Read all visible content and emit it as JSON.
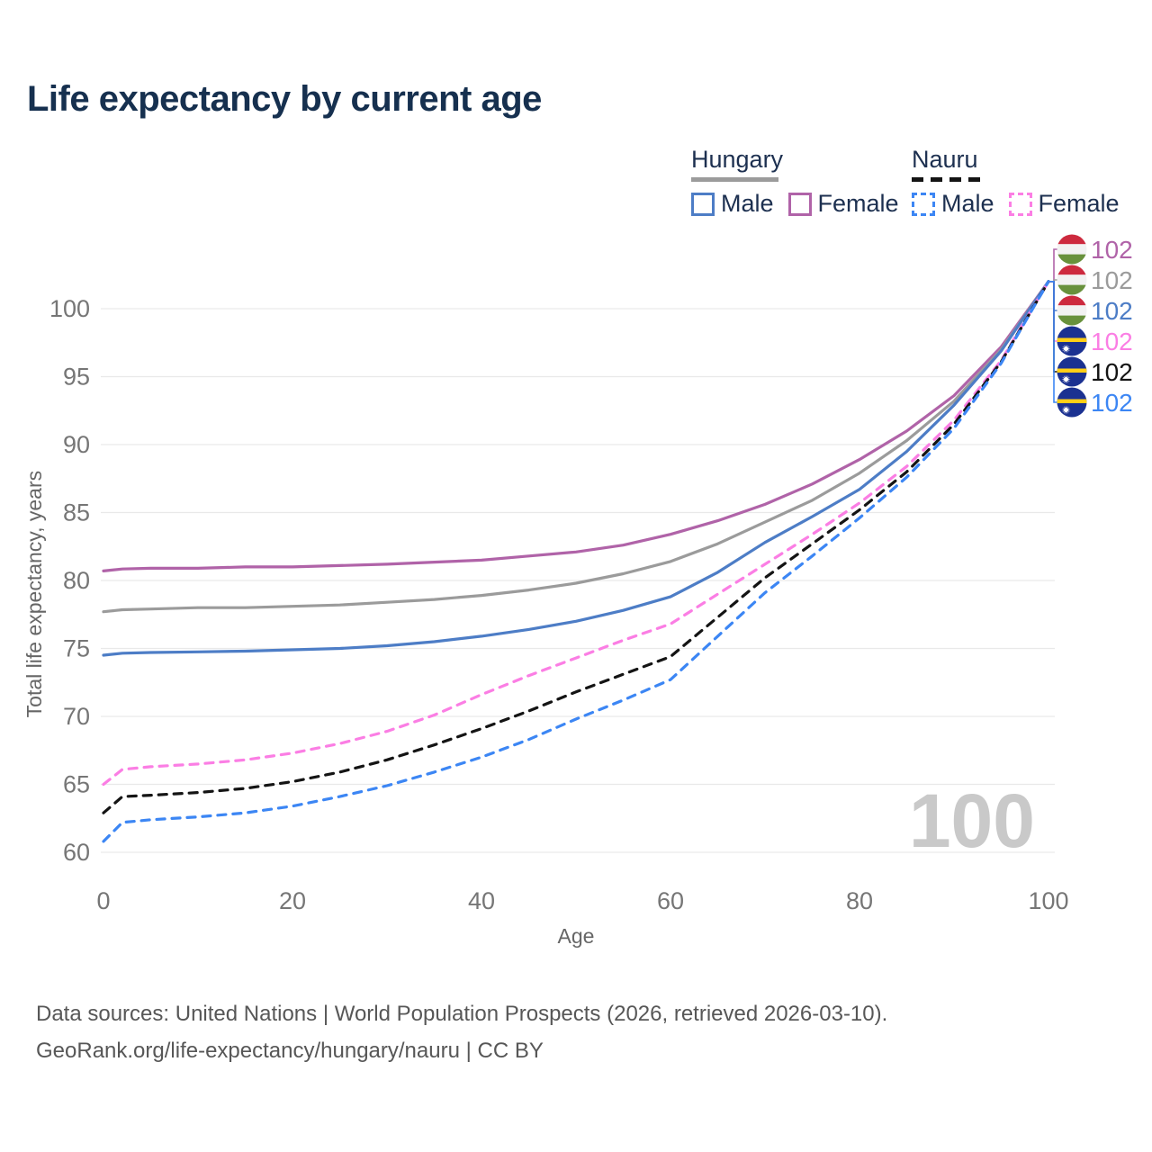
{
  "title": "Life expectancy by current age",
  "watermark": "100",
  "legend": {
    "groups": [
      {
        "name": "Hungary",
        "line_style": "solid",
        "underline_color": "#9b9b9b",
        "underline_width": 97,
        "items": [
          {
            "label": "Male",
            "color": "#4d7dc6",
            "dashed": false
          },
          {
            "label": "Female",
            "color": "#b063a8",
            "dashed": false
          }
        ]
      },
      {
        "name": "Nauru",
        "line_style": "dashed",
        "underline_color": "#141414",
        "underline_width": 80,
        "items": [
          {
            "label": "Male",
            "color": "#3c86f4",
            "dashed": true
          },
          {
            "label": "Female",
            "color": "#fb7ee4",
            "dashed": true
          }
        ]
      }
    ]
  },
  "footer": {
    "line1": "Data sources: United Nations | World Population Prospects (2026, retrieved 2026-03-10).",
    "line2": "GeoRank.org/life-expectancy/hungary/nauru | CC BY"
  },
  "chart_data": {
    "type": "line",
    "title": "Life expectancy by current age",
    "xlabel": "Age",
    "ylabel": "Total life expectancy, years",
    "x_ticks": [
      0,
      20,
      40,
      60,
      80,
      100
    ],
    "y_ticks": [
      60,
      65,
      70,
      75,
      80,
      85,
      90,
      95,
      100
    ],
    "xlim": [
      0,
      100
    ],
    "ylim": [
      59,
      103
    ],
    "grid": "horizontal-only",
    "legend_position": "top-right",
    "ages": [
      0,
      2,
      5,
      10,
      15,
      20,
      25,
      30,
      35,
      40,
      45,
      50,
      55,
      60,
      65,
      70,
      75,
      80,
      85,
      90,
      95,
      100
    ],
    "series": [
      {
        "name": "Hungary Female",
        "country": "Hungary",
        "sex": "Female",
        "color": "#b063a8",
        "dashed": false,
        "flag": "hungary",
        "end_label": "102",
        "values": [
          80.7,
          80.85,
          80.9,
          80.9,
          81.0,
          81.0,
          81.1,
          81.2,
          81.35,
          81.5,
          81.8,
          82.1,
          82.6,
          83.4,
          84.4,
          85.6,
          87.1,
          88.9,
          91.0,
          93.6,
          97.2,
          102
        ]
      },
      {
        "name": "Hungary Both sexes",
        "country": "Hungary",
        "sex": "Both",
        "color": "#9b9b9b",
        "dashed": false,
        "flag": "hungary",
        "end_label": "102",
        "values": [
          77.7,
          77.85,
          77.9,
          78.0,
          78.0,
          78.1,
          78.2,
          78.4,
          78.6,
          78.9,
          79.3,
          79.8,
          80.5,
          81.4,
          82.7,
          84.3,
          85.9,
          87.9,
          90.3,
          93.2,
          97.0,
          102
        ]
      },
      {
        "name": "Hungary Male",
        "country": "Hungary",
        "sex": "Male",
        "color": "#4d7dc6",
        "dashed": false,
        "flag": "hungary",
        "end_label": "102",
        "values": [
          74.5,
          74.65,
          74.7,
          74.75,
          74.8,
          74.9,
          75.0,
          75.2,
          75.5,
          75.9,
          76.4,
          77.0,
          77.8,
          78.8,
          80.6,
          82.8,
          84.7,
          86.7,
          89.5,
          92.9,
          96.9,
          102
        ]
      },
      {
        "name": "Nauru Female",
        "country": "Nauru",
        "sex": "Female",
        "color": "#fb7ee4",
        "dashed": true,
        "flag": "nauru",
        "end_label": "102",
        "values": [
          65.0,
          66.1,
          66.3,
          66.5,
          66.8,
          67.3,
          68.0,
          68.9,
          70.1,
          71.6,
          73.0,
          74.3,
          75.6,
          76.8,
          79.0,
          81.2,
          83.4,
          85.7,
          88.4,
          91.8,
          96.2,
          102
        ]
      },
      {
        "name": "Nauru Both sexes",
        "country": "Nauru",
        "sex": "Both",
        "color": "#141414",
        "dashed": true,
        "flag": "nauru",
        "end_label": "102",
        "values": [
          62.9,
          64.1,
          64.2,
          64.4,
          64.7,
          65.2,
          65.9,
          66.8,
          67.9,
          69.1,
          70.4,
          71.8,
          73.1,
          74.4,
          77.3,
          80.2,
          82.7,
          85.2,
          88.0,
          91.5,
          96.1,
          102
        ]
      },
      {
        "name": "Nauru Male",
        "country": "Nauru",
        "sex": "Male",
        "color": "#3c86f4",
        "dashed": true,
        "flag": "nauru",
        "end_label": "102",
        "values": [
          60.8,
          62.2,
          62.4,
          62.6,
          62.9,
          63.4,
          64.1,
          64.9,
          65.9,
          67.0,
          68.3,
          69.8,
          71.2,
          72.7,
          75.9,
          79.1,
          81.8,
          84.6,
          87.6,
          91.2,
          96.0,
          102
        ]
      }
    ],
    "flag_colors": {
      "hungary_red": "#cd2a3e",
      "hungary_white": "#f2f2f2",
      "hungary_green": "#68913c",
      "nauru_blue": "#1b3191",
      "nauru_yellow": "#ffcf16",
      "nauru_star": "#ffffff"
    },
    "watermark_color": "#c9c9c9",
    "grid_color": "#e9e9e9",
    "tick_color": "#767676",
    "axis_title_color": "#666666"
  }
}
